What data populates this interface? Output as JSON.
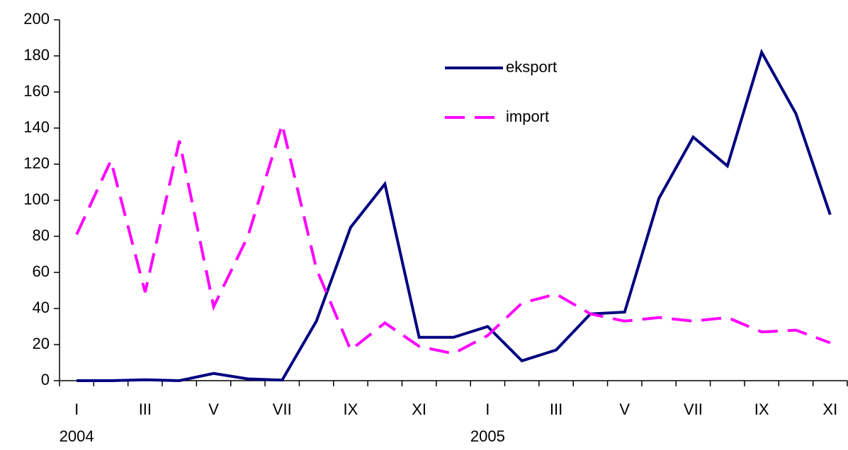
{
  "chart_data": {
    "type": "line",
    "categories": [
      "I",
      null,
      "III",
      null,
      "V",
      null,
      "VII",
      null,
      "IX",
      null,
      "XI",
      null,
      "I",
      null,
      "III",
      null,
      "V",
      null,
      "VII",
      null,
      "IX",
      null,
      "XI"
    ],
    "years": [
      "2004",
      "2005"
    ],
    "series": [
      {
        "name": "eksport",
        "color": "#000080",
        "dash": "solid",
        "values": [
          0,
          0,
          0.5,
          0,
          4,
          1,
          0.3,
          33,
          85,
          109,
          24,
          24,
          30,
          11,
          17,
          37,
          38,
          101,
          135,
          119,
          182,
          148,
          92
        ]
      },
      {
        "name": "import",
        "color": "#ff00ff",
        "dash": "dashed",
        "values": [
          81,
          122,
          49,
          133,
          41,
          80,
          142,
          62,
          17,
          32,
          19,
          15,
          25,
          43,
          48,
          37,
          33,
          35,
          33,
          35,
          27,
          28,
          21
        ]
      }
    ],
    "ylim": [
      0,
      200
    ],
    "yticks": [
      0,
      20,
      40,
      60,
      80,
      100,
      120,
      140,
      160,
      180,
      200
    ],
    "legend": "top-center",
    "grid": false
  }
}
